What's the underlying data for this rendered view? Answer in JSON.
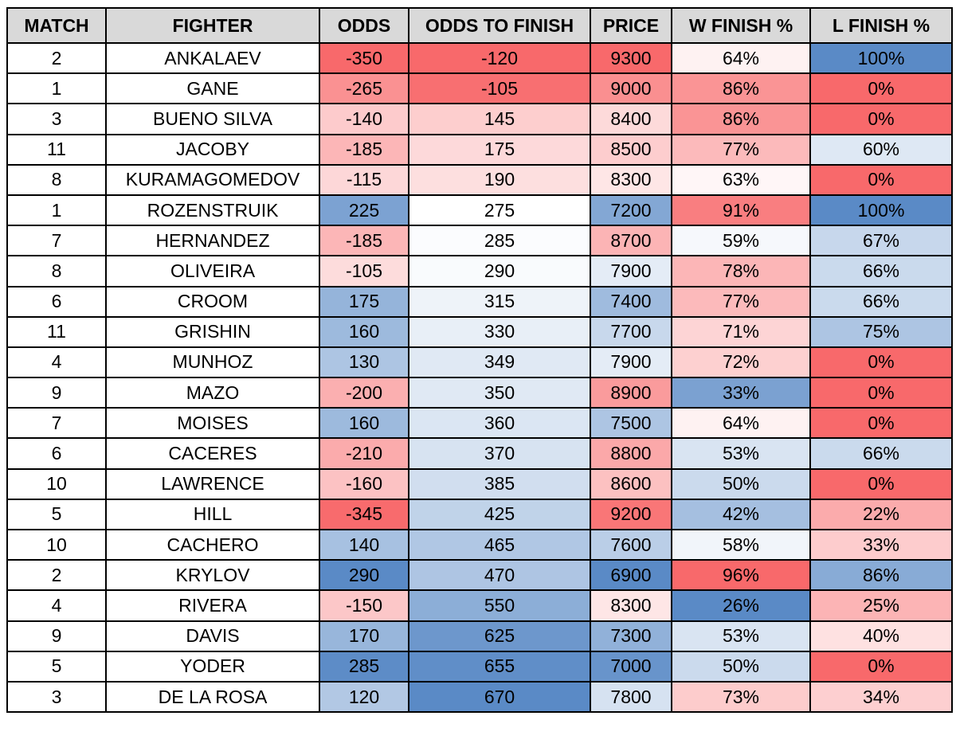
{
  "chart_data": {
    "type": "table",
    "columns": [
      "MATCH",
      "FIGHTER",
      "ODDS",
      "ODDS TO FINISH",
      "PRICE",
      "W FINISH %",
      "L FINISH %"
    ],
    "rows": [
      [
        2,
        "ANKALAEV",
        -350,
        -120,
        9300,
        64,
        100
      ],
      [
        1,
        "GANE",
        -265,
        -105,
        9000,
        86,
        0
      ],
      [
        3,
        "BUENO SILVA",
        -140,
        145,
        8400,
        86,
        0
      ],
      [
        11,
        "JACOBY",
        -185,
        175,
        8500,
        77,
        60
      ],
      [
        8,
        "KURAMAGOMEDOV",
        -115,
        190,
        8300,
        63,
        0
      ],
      [
        1,
        "ROZENSTRUIK",
        225,
        275,
        7200,
        91,
        100
      ],
      [
        7,
        "HERNANDEZ",
        -185,
        285,
        8700,
        59,
        67
      ],
      [
        8,
        "OLIVEIRA",
        -105,
        290,
        7900,
        78,
        66
      ],
      [
        6,
        "CROOM",
        175,
        315,
        7400,
        77,
        66
      ],
      [
        11,
        "GRISHIN",
        160,
        330,
        7700,
        71,
        75
      ],
      [
        4,
        "MUNHOZ",
        130,
        349,
        7900,
        72,
        0
      ],
      [
        9,
        "MAZO",
        -200,
        350,
        8900,
        33,
        0
      ],
      [
        7,
        "MOISES",
        160,
        360,
        7500,
        64,
        0
      ],
      [
        6,
        "CACERES",
        -210,
        370,
        8800,
        53,
        66
      ],
      [
        10,
        "LAWRENCE",
        -160,
        385,
        8600,
        50,
        0
      ],
      [
        5,
        "HILL",
        -345,
        425,
        9200,
        42,
        22
      ],
      [
        10,
        "CACHERO",
        140,
        465,
        7600,
        58,
        33
      ],
      [
        2,
        "KRYLOV",
        290,
        470,
        6900,
        96,
        86
      ],
      [
        4,
        "RIVERA",
        -150,
        550,
        8300,
        26,
        25
      ],
      [
        9,
        "DAVIS",
        170,
        625,
        7300,
        53,
        40
      ],
      [
        5,
        "YODER",
        285,
        655,
        7000,
        50,
        0
      ],
      [
        3,
        "DE LA ROSA",
        120,
        670,
        7800,
        73,
        34
      ]
    ],
    "percent_columns": [
      5,
      6
    ],
    "color_scales": [
      null,
      null,
      {
        "low": "#f8696b",
        "high": "#5a8ac6",
        "direction": "low-is-red"
      },
      {
        "low": "#f8696b",
        "high": "#5a8ac6",
        "direction": "low-is-red"
      },
      {
        "low": "#5a8ac6",
        "high": "#f8696b",
        "direction": "high-is-red"
      },
      {
        "low": "#5a8ac6",
        "high": "#f8696b",
        "direction": "high-is-red"
      },
      {
        "low": "#f8696b",
        "high": "#5a8ac6",
        "direction": "low-is-red"
      }
    ],
    "header_bg": "#d9d9d9",
    "grid": true
  }
}
